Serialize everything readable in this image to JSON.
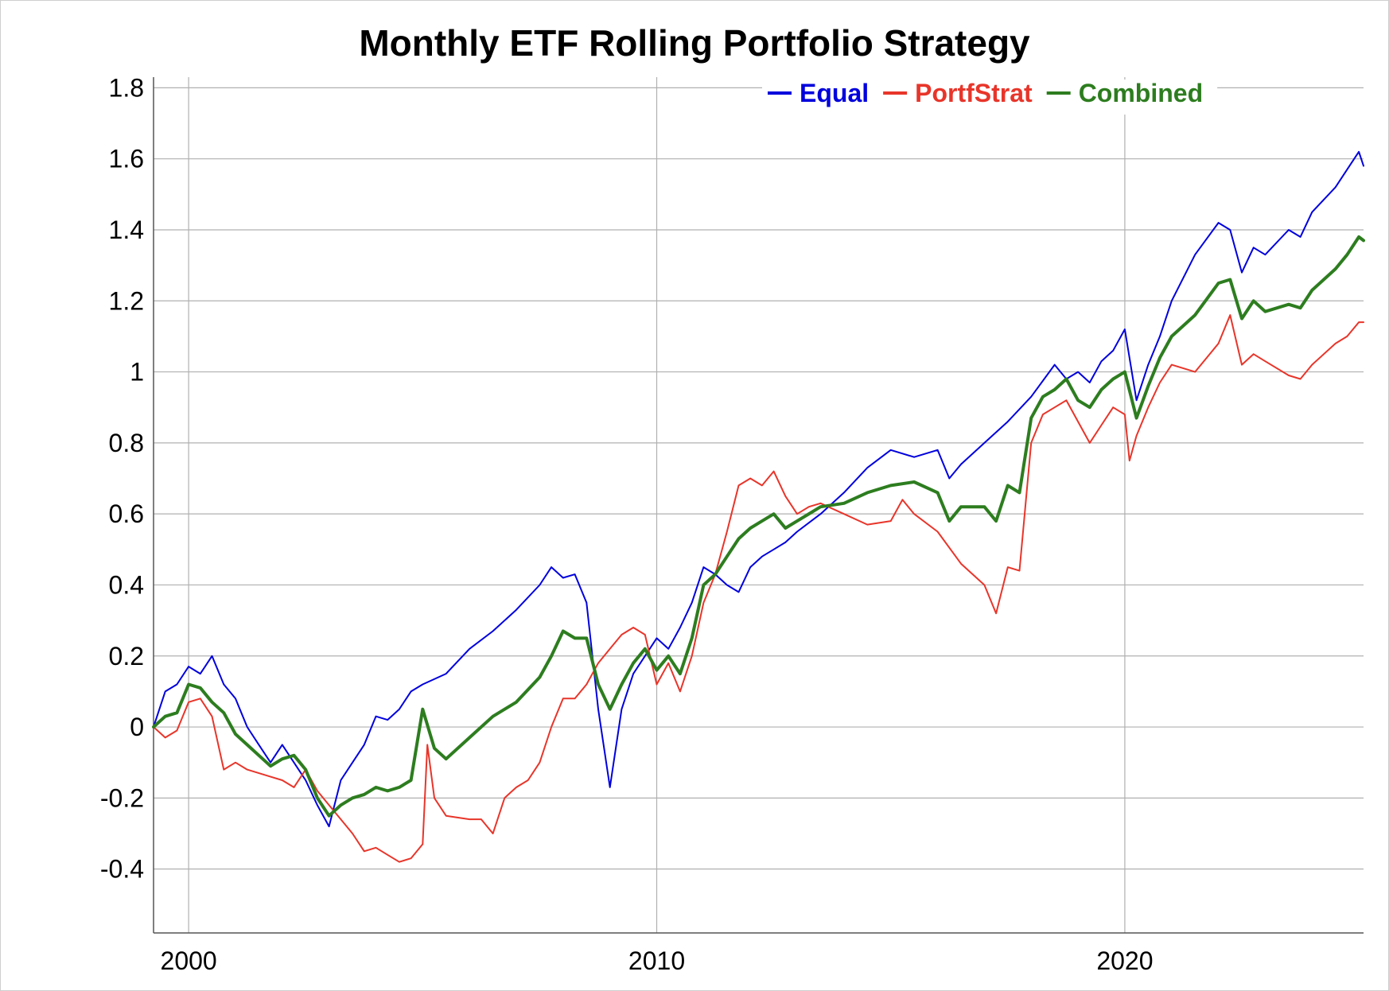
{
  "chart_data": {
    "type": "line",
    "title": "Monthly ETF Rolling Portfolio Strategy",
    "xlabel": "",
    "ylabel": "",
    "xlim": [
      1999.25,
      2025.1
    ],
    "ylim": [
      -0.58,
      1.83
    ],
    "x_ticks": [
      2000,
      2010,
      2020
    ],
    "x_tick_labels": [
      "2000",
      "2010",
      "2020"
    ],
    "y_ticks": [
      -0.4,
      -0.2,
      0,
      0.2,
      0.4,
      0.6,
      0.8,
      1,
      1.2,
      1.4,
      1.6,
      1.8
    ],
    "y_tick_labels": [
      "-0.4",
      "-0.2",
      "0",
      "0.2",
      "0.4",
      "0.6",
      "0.8",
      "1",
      "1.2",
      "1.4",
      "1.6",
      "1.8"
    ],
    "grid": true,
    "legend_position": "top-right",
    "series": [
      {
        "name": "Equal",
        "color": "#0000dd",
        "width": 2,
        "points": [
          [
            1999.25,
            0.0
          ],
          [
            1999.5,
            0.1
          ],
          [
            1999.75,
            0.12
          ],
          [
            2000.0,
            0.17
          ],
          [
            2000.25,
            0.15
          ],
          [
            2000.5,
            0.2
          ],
          [
            2000.75,
            0.12
          ],
          [
            2001.0,
            0.08
          ],
          [
            2001.25,
            0.0
          ],
          [
            2001.5,
            -0.05
          ],
          [
            2001.75,
            -0.1
          ],
          [
            2002.0,
            -0.05
          ],
          [
            2002.25,
            -0.1
          ],
          [
            2002.5,
            -0.15
          ],
          [
            2002.75,
            -0.22
          ],
          [
            2003.0,
            -0.28
          ],
          [
            2003.25,
            -0.15
          ],
          [
            2003.5,
            -0.1
          ],
          [
            2003.75,
            -0.05
          ],
          [
            2004.0,
            0.03
          ],
          [
            2004.25,
            0.02
          ],
          [
            2004.5,
            0.05
          ],
          [
            2004.75,
            0.1
          ],
          [
            2005.0,
            0.12
          ],
          [
            2005.5,
            0.15
          ],
          [
            2006.0,
            0.22
          ],
          [
            2006.5,
            0.27
          ],
          [
            2007.0,
            0.33
          ],
          [
            2007.5,
            0.4
          ],
          [
            2007.75,
            0.45
          ],
          [
            2008.0,
            0.42
          ],
          [
            2008.25,
            0.43
          ],
          [
            2008.5,
            0.35
          ],
          [
            2008.75,
            0.05
          ],
          [
            2009.0,
            -0.17
          ],
          [
            2009.25,
            0.05
          ],
          [
            2009.5,
            0.15
          ],
          [
            2009.75,
            0.2
          ],
          [
            2010.0,
            0.25
          ],
          [
            2010.25,
            0.22
          ],
          [
            2010.5,
            0.28
          ],
          [
            2010.75,
            0.35
          ],
          [
            2011.0,
            0.45
          ],
          [
            2011.25,
            0.43
          ],
          [
            2011.5,
            0.4
          ],
          [
            2011.75,
            0.38
          ],
          [
            2012.0,
            0.45
          ],
          [
            2012.25,
            0.48
          ],
          [
            2012.5,
            0.5
          ],
          [
            2012.75,
            0.52
          ],
          [
            2013.0,
            0.55
          ],
          [
            2013.5,
            0.6
          ],
          [
            2014.0,
            0.66
          ],
          [
            2014.5,
            0.73
          ],
          [
            2015.0,
            0.78
          ],
          [
            2015.5,
            0.76
          ],
          [
            2016.0,
            0.78
          ],
          [
            2016.25,
            0.7
          ],
          [
            2016.5,
            0.74
          ],
          [
            2017.0,
            0.8
          ],
          [
            2017.5,
            0.86
          ],
          [
            2018.0,
            0.93
          ],
          [
            2018.5,
            1.02
          ],
          [
            2018.75,
            0.98
          ],
          [
            2019.0,
            1.0
          ],
          [
            2019.25,
            0.97
          ],
          [
            2019.5,
            1.03
          ],
          [
            2019.75,
            1.06
          ],
          [
            2020.0,
            1.12
          ],
          [
            2020.25,
            0.92
          ],
          [
            2020.5,
            1.02
          ],
          [
            2020.75,
            1.1
          ],
          [
            2021.0,
            1.2
          ],
          [
            2021.5,
            1.33
          ],
          [
            2022.0,
            1.42
          ],
          [
            2022.25,
            1.4
          ],
          [
            2022.5,
            1.28
          ],
          [
            2022.75,
            1.35
          ],
          [
            2023.0,
            1.33
          ],
          [
            2023.5,
            1.4
          ],
          [
            2023.75,
            1.38
          ],
          [
            2024.0,
            1.45
          ],
          [
            2024.5,
            1.52
          ],
          [
            2024.75,
            1.57
          ],
          [
            2025.0,
            1.62
          ],
          [
            2025.1,
            1.58
          ]
        ]
      },
      {
        "name": "PortfStrat",
        "color": "#e8352a",
        "width": 2,
        "points": [
          [
            1999.25,
            0.0
          ],
          [
            1999.5,
            -0.03
          ],
          [
            1999.75,
            -0.01
          ],
          [
            2000.0,
            0.07
          ],
          [
            2000.25,
            0.08
          ],
          [
            2000.5,
            0.03
          ],
          [
            2000.75,
            -0.12
          ],
          [
            2001.0,
            -0.1
          ],
          [
            2001.25,
            -0.12
          ],
          [
            2001.5,
            -0.13
          ],
          [
            2001.75,
            -0.14
          ],
          [
            2002.0,
            -0.15
          ],
          [
            2002.25,
            -0.17
          ],
          [
            2002.5,
            -0.12
          ],
          [
            2002.75,
            -0.18
          ],
          [
            2003.0,
            -0.22
          ],
          [
            2003.25,
            -0.26
          ],
          [
            2003.5,
            -0.3
          ],
          [
            2003.75,
            -0.35
          ],
          [
            2004.0,
            -0.34
          ],
          [
            2004.25,
            -0.36
          ],
          [
            2004.5,
            -0.38
          ],
          [
            2004.75,
            -0.37
          ],
          [
            2005.0,
            -0.33
          ],
          [
            2005.1,
            -0.05
          ],
          [
            2005.25,
            -0.2
          ],
          [
            2005.5,
            -0.25
          ],
          [
            2006.0,
            -0.26
          ],
          [
            2006.25,
            -0.26
          ],
          [
            2006.5,
            -0.3
          ],
          [
            2006.75,
            -0.2
          ],
          [
            2007.0,
            -0.17
          ],
          [
            2007.25,
            -0.15
          ],
          [
            2007.5,
            -0.1
          ],
          [
            2007.75,
            0.0
          ],
          [
            2008.0,
            0.08
          ],
          [
            2008.25,
            0.08
          ],
          [
            2008.5,
            0.12
          ],
          [
            2008.75,
            0.18
          ],
          [
            2009.0,
            0.22
          ],
          [
            2009.25,
            0.26
          ],
          [
            2009.5,
            0.28
          ],
          [
            2009.75,
            0.26
          ],
          [
            2010.0,
            0.12
          ],
          [
            2010.25,
            0.18
          ],
          [
            2010.5,
            0.1
          ],
          [
            2010.75,
            0.2
          ],
          [
            2011.0,
            0.35
          ],
          [
            2011.25,
            0.43
          ],
          [
            2011.5,
            0.55
          ],
          [
            2011.75,
            0.68
          ],
          [
            2012.0,
            0.7
          ],
          [
            2012.25,
            0.68
          ],
          [
            2012.5,
            0.72
          ],
          [
            2012.75,
            0.65
          ],
          [
            2013.0,
            0.6
          ],
          [
            2013.25,
            0.62
          ],
          [
            2013.5,
            0.63
          ],
          [
            2014.0,
            0.6
          ],
          [
            2014.5,
            0.57
          ],
          [
            2015.0,
            0.58
          ],
          [
            2015.25,
            0.64
          ],
          [
            2015.5,
            0.6
          ],
          [
            2016.0,
            0.55
          ],
          [
            2016.5,
            0.46
          ],
          [
            2017.0,
            0.4
          ],
          [
            2017.25,
            0.32
          ],
          [
            2017.5,
            0.45
          ],
          [
            2017.75,
            0.44
          ],
          [
            2018.0,
            0.8
          ],
          [
            2018.25,
            0.88
          ],
          [
            2018.5,
            0.9
          ],
          [
            2018.75,
            0.92
          ],
          [
            2019.0,
            0.86
          ],
          [
            2019.25,
            0.8
          ],
          [
            2019.5,
            0.85
          ],
          [
            2019.75,
            0.9
          ],
          [
            2020.0,
            0.88
          ],
          [
            2020.1,
            0.75
          ],
          [
            2020.25,
            0.82
          ],
          [
            2020.5,
            0.9
          ],
          [
            2020.75,
            0.97
          ],
          [
            2021.0,
            1.02
          ],
          [
            2021.5,
            1.0
          ],
          [
            2022.0,
            1.08
          ],
          [
            2022.25,
            1.16
          ],
          [
            2022.5,
            1.02
          ],
          [
            2022.75,
            1.05
          ],
          [
            2023.0,
            1.03
          ],
          [
            2023.5,
            0.99
          ],
          [
            2023.75,
            0.98
          ],
          [
            2024.0,
            1.02
          ],
          [
            2024.5,
            1.08
          ],
          [
            2024.75,
            1.1
          ],
          [
            2025.0,
            1.14
          ],
          [
            2025.1,
            1.14
          ]
        ]
      },
      {
        "name": "Combined",
        "color": "#2d7d1f",
        "width": 4,
        "points": [
          [
            1999.25,
            0.0
          ],
          [
            1999.5,
            0.03
          ],
          [
            1999.75,
            0.04
          ],
          [
            2000.0,
            0.12
          ],
          [
            2000.25,
            0.11
          ],
          [
            2000.5,
            0.07
          ],
          [
            2000.75,
            0.04
          ],
          [
            2001.0,
            -0.02
          ],
          [
            2001.25,
            -0.05
          ],
          [
            2001.5,
            -0.08
          ],
          [
            2001.75,
            -0.11
          ],
          [
            2002.0,
            -0.09
          ],
          [
            2002.25,
            -0.08
          ],
          [
            2002.5,
            -0.12
          ],
          [
            2002.75,
            -0.2
          ],
          [
            2003.0,
            -0.25
          ],
          [
            2003.25,
            -0.22
          ],
          [
            2003.5,
            -0.2
          ],
          [
            2003.75,
            -0.19
          ],
          [
            2004.0,
            -0.17
          ],
          [
            2004.25,
            -0.18
          ],
          [
            2004.5,
            -0.17
          ],
          [
            2004.75,
            -0.15
          ],
          [
            2005.0,
            0.05
          ],
          [
            2005.25,
            -0.06
          ],
          [
            2005.5,
            -0.09
          ],
          [
            2006.0,
            -0.03
          ],
          [
            2006.5,
            0.03
          ],
          [
            2007.0,
            0.07
          ],
          [
            2007.5,
            0.14
          ],
          [
            2007.75,
            0.2
          ],
          [
            2008.0,
            0.27
          ],
          [
            2008.25,
            0.25
          ],
          [
            2008.5,
            0.25
          ],
          [
            2008.75,
            0.12
          ],
          [
            2009.0,
            0.05
          ],
          [
            2009.25,
            0.12
          ],
          [
            2009.5,
            0.18
          ],
          [
            2009.75,
            0.22
          ],
          [
            2010.0,
            0.16
          ],
          [
            2010.25,
            0.2
          ],
          [
            2010.5,
            0.15
          ],
          [
            2010.75,
            0.25
          ],
          [
            2011.0,
            0.4
          ],
          [
            2011.25,
            0.43
          ],
          [
            2011.5,
            0.48
          ],
          [
            2011.75,
            0.53
          ],
          [
            2012.0,
            0.56
          ],
          [
            2012.25,
            0.58
          ],
          [
            2012.5,
            0.6
          ],
          [
            2012.75,
            0.56
          ],
          [
            2013.0,
            0.58
          ],
          [
            2013.5,
            0.62
          ],
          [
            2014.0,
            0.63
          ],
          [
            2014.5,
            0.66
          ],
          [
            2015.0,
            0.68
          ],
          [
            2015.5,
            0.69
          ],
          [
            2016.0,
            0.66
          ],
          [
            2016.25,
            0.58
          ],
          [
            2016.5,
            0.62
          ],
          [
            2017.0,
            0.62
          ],
          [
            2017.25,
            0.58
          ],
          [
            2017.5,
            0.68
          ],
          [
            2017.75,
            0.66
          ],
          [
            2018.0,
            0.87
          ],
          [
            2018.25,
            0.93
          ],
          [
            2018.5,
            0.95
          ],
          [
            2018.75,
            0.98
          ],
          [
            2019.0,
            0.92
          ],
          [
            2019.25,
            0.9
          ],
          [
            2019.5,
            0.95
          ],
          [
            2019.75,
            0.98
          ],
          [
            2020.0,
            1.0
          ],
          [
            2020.25,
            0.87
          ],
          [
            2020.5,
            0.96
          ],
          [
            2020.75,
            1.04
          ],
          [
            2021.0,
            1.1
          ],
          [
            2021.5,
            1.16
          ],
          [
            2022.0,
            1.25
          ],
          [
            2022.25,
            1.26
          ],
          [
            2022.5,
            1.15
          ],
          [
            2022.75,
            1.2
          ],
          [
            2023.0,
            1.17
          ],
          [
            2023.5,
            1.19
          ],
          [
            2023.75,
            1.18
          ],
          [
            2024.0,
            1.23
          ],
          [
            2024.5,
            1.29
          ],
          [
            2024.75,
            1.33
          ],
          [
            2025.0,
            1.38
          ],
          [
            2025.1,
            1.37
          ]
        ]
      }
    ]
  }
}
